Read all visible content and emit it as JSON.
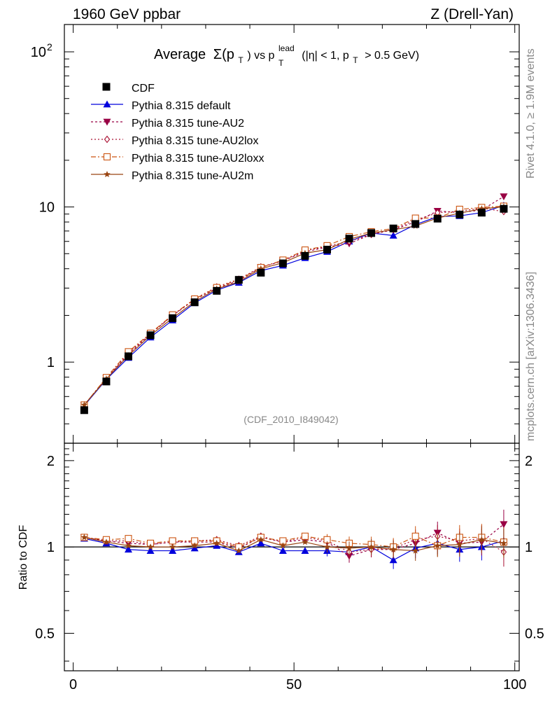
{
  "header": {
    "left": "1960 GeV ppbar",
    "right": "Z (Drell-Yan)"
  },
  "side": {
    "rivet": "Rivet 4.1.0, ≥ 1.9M events",
    "mcplots": "mcplots.cern.ch [arXiv:1306.3436]"
  },
  "chart_data": {
    "type": "line",
    "title": {
      "prefix": "Average",
      "sigma": "Σ(p",
      "sub_T": "T",
      "vs": ") vs p",
      "sup_lead": "lead",
      "cuts": "(|η| < 1, p",
      "cuts_end": "> 0.5 GeV)"
    },
    "analysis_id": "(CDF_2010_I849042)",
    "xlabel": "",
    "ylabel_ratio": "Ratio to CDF",
    "xlim": [
      -2,
      101
    ],
    "ylim_main": [
      0.3,
      150
    ],
    "yscale_main": "log",
    "ylim_ratio": [
      0.37,
      2.3
    ],
    "yscale_ratio": "log",
    "x_ticks": [
      0,
      50,
      100
    ],
    "x_tick_labels": [
      "0",
      "50",
      "100"
    ],
    "main_y_ticks": [
      1,
      10,
      100
    ],
    "main_y_tick_labels": [
      "1",
      "10",
      "10",
      "2"
    ],
    "ratio_y_ticks": [
      0.5,
      1,
      2
    ],
    "ratio_y_tick_labels": [
      "0.5",
      "1",
      "2"
    ],
    "x": [
      2.5,
      7.5,
      12.5,
      17.5,
      22.5,
      27.5,
      32.5,
      37.5,
      42.5,
      47.5,
      52.5,
      57.5,
      62.5,
      67.5,
      72.5,
      77.5,
      82.5,
      87.5,
      92.5,
      97.5
    ],
    "data": {
      "name": "CDF",
      "values": [
        0.49,
        0.75,
        1.09,
        1.49,
        1.92,
        2.43,
        2.88,
        3.39,
        3.77,
        4.33,
        4.84,
        5.31,
        6.25,
        6.79,
        7.27,
        7.77,
        8.41,
        8.94,
        9.19,
        9.73
      ]
    },
    "series": [
      {
        "name": "Pythia 8.315 default",
        "color": "#0000dd",
        "marker": "triangle-up",
        "dash": "",
        "ratio": [
          1.07,
          1.03,
          0.98,
          0.97,
          0.97,
          0.99,
          1.01,
          0.96,
          1.03,
          0.97,
          0.97,
          0.97,
          0.96,
          1.0,
          0.9,
          0.99,
          1.03,
          0.98,
          1.0,
          1.05
        ]
      },
      {
        "name": "Pythia 8.315 tune-AU2",
        "color": "#990044",
        "marker": "triangle-down",
        "dash": "3,3",
        "ratio": [
          1.08,
          1.05,
          1.03,
          1.02,
          1.04,
          1.04,
          1.04,
          0.99,
          1.08,
          1.04,
          1.06,
          1.04,
          0.93,
          0.98,
          0.98,
          1.03,
          1.12,
          1.03,
          1.04,
          1.2
        ]
      },
      {
        "name": "Pythia 8.315 tune-AU2lox",
        "color": "#aa1133",
        "marker": "diamond-open",
        "dash": "2,3",
        "ratio": [
          1.08,
          1.05,
          1.05,
          1.02,
          1.04,
          1.05,
          1.06,
          1.01,
          1.09,
          1.04,
          1.08,
          1.05,
          0.96,
          0.98,
          0.99,
          1.06,
          1.09,
          1.05,
          1.07,
          0.96
        ]
      },
      {
        "name": "Pythia 8.315 tune-AU2loxx",
        "color": "#cc5511",
        "marker": "square-open",
        "dash": "7,3,2,3",
        "ratio": [
          1.08,
          1.06,
          1.07,
          1.03,
          1.05,
          1.05,
          1.05,
          1.0,
          1.08,
          1.05,
          1.09,
          1.06,
          1.03,
          1.02,
          1.0,
          1.09,
          1.01,
          1.08,
          1.08,
          1.04
        ]
      },
      {
        "name": "Pythia 8.315 tune-AU2m",
        "color": "#994411",
        "marker": "star",
        "dash": "",
        "ratio": [
          1.08,
          1.04,
          1.01,
          1.0,
          1.0,
          1.01,
          1.03,
          0.97,
          1.06,
          1.01,
          1.04,
          1.0,
          0.99,
          1.0,
          0.98,
          0.97,
          1.01,
          1.02,
          1.06,
          1.03
        ]
      }
    ]
  },
  "legend": {
    "placement": "top-left",
    "entries": [
      "CDF",
      "Pythia 8.315 default",
      "Pythia 8.315 tune-AU2",
      "Pythia 8.315 tune-AU2lox",
      "Pythia 8.315 tune-AU2loxx",
      "Pythia 8.315 tune-AU2m"
    ]
  }
}
